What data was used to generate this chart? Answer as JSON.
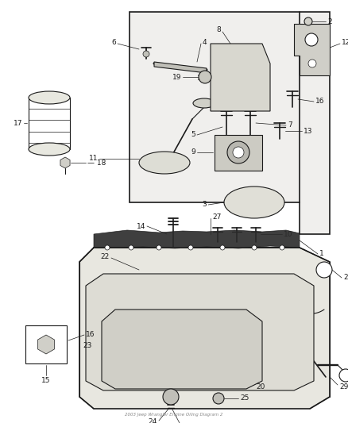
{
  "title": "2003 Jeep Wrangler Engine Oiling Diagram 2",
  "bg_color": "#ffffff",
  "line_color": "#1a1a1a",
  "footer_text": "2003 Jeep Wrangler Engine Oiling Diagram 2",
  "fig_w": 4.38,
  "fig_h": 5.33,
  "dpi": 100
}
